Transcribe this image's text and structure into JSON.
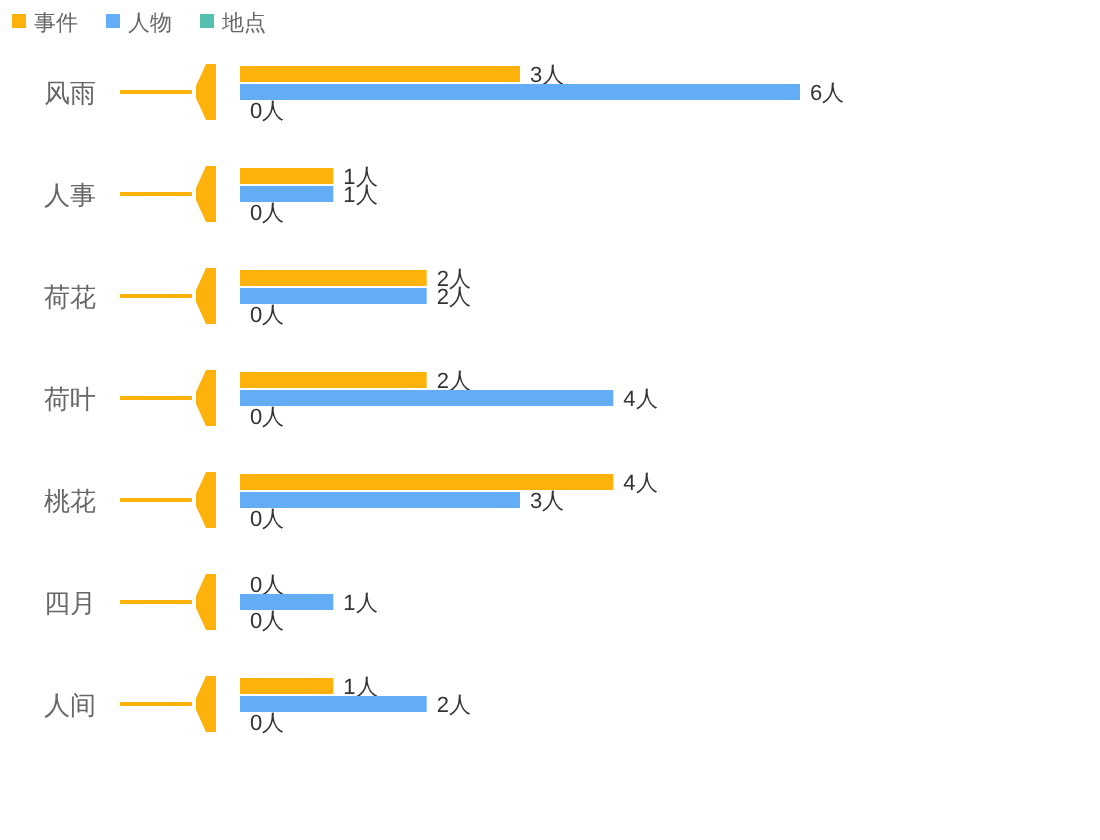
{
  "chart_data": {
    "type": "bar",
    "orientation": "horizontal",
    "legend": "top left",
    "categories": [
      "风雨",
      "人事",
      "荷花",
      "荷叶",
      "桃花",
      "四月",
      "人间"
    ],
    "series": [
      {
        "name": "事件",
        "color": "#fdb10b",
        "values": [
          3,
          1,
          2,
          2,
          4,
          0,
          1
        ],
        "value_labels": [
          "3人",
          "1人",
          "2人",
          "2人",
          "4人",
          "0人",
          "1人"
        ]
      },
      {
        "name": "人物",
        "color": "#62adf5",
        "values": [
          6,
          1,
          2,
          4,
          3,
          1,
          2
        ],
        "value_labels": [
          "6人",
          "1人",
          "2人",
          "4人",
          "3人",
          "1人",
          "2人"
        ]
      },
      {
        "name": "地点",
        "color": "#53c0b0",
        "values": [
          0,
          0,
          0,
          0,
          0,
          0,
          0
        ],
        "value_labels": [
          "0人",
          "0人",
          "0人",
          "0人",
          "0人",
          "0人",
          "0人"
        ]
      }
    ]
  }
}
